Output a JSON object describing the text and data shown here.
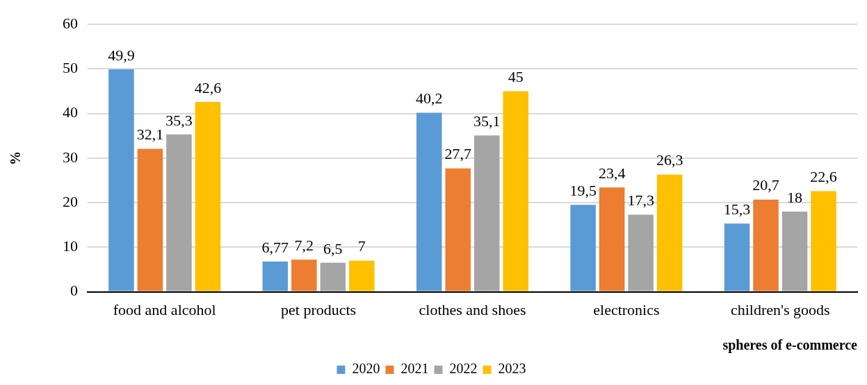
{
  "chart_data": {
    "type": "bar",
    "xlabel": "spheres of e-commerce",
    "ylabel": "%",
    "categories": [
      "food and alcohol",
      "pet products",
      "clothes and shoes",
      "electronics",
      "children's goods"
    ],
    "series": [
      {
        "name": "2020",
        "color": "#5b9bd5",
        "values": [
          49.9,
          6.77,
          40.2,
          19.5,
          15.3
        ],
        "value_labels": [
          "49,9",
          "6,77",
          "40,2",
          "19,5",
          "15,3"
        ]
      },
      {
        "name": "2021",
        "color": "#ed7d31",
        "values": [
          32.1,
          7.2,
          27.7,
          23.4,
          20.7
        ],
        "value_labels": [
          "32,1",
          "7,2",
          "27,7",
          "23,4",
          "20,7"
        ]
      },
      {
        "name": "2022",
        "color": "#a5a5a5",
        "values": [
          35.3,
          6.5,
          35.1,
          17.3,
          18
        ],
        "value_labels": [
          "35,3",
          "6,5",
          "35,1",
          "17,3",
          "18"
        ]
      },
      {
        "name": "2023",
        "color": "#ffc000",
        "values": [
          42.6,
          7,
          45,
          26.3,
          22.6
        ],
        "value_labels": [
          "42,6",
          "7",
          "45",
          "26,3",
          "22,6"
        ]
      }
    ],
    "ylim": [
      0,
      60
    ],
    "yticks": [
      0,
      10,
      20,
      30,
      40,
      50,
      60
    ],
    "grid": "y",
    "legend": "bottom"
  }
}
